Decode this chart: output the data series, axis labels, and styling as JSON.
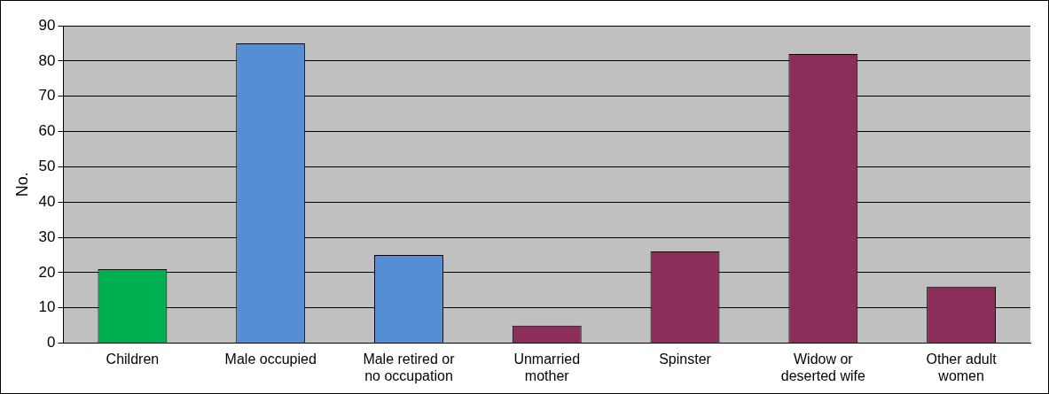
{
  "chart_data": {
    "type": "bar",
    "ylabel": "No.",
    "categories": [
      "Children",
      "Male occupied",
      "Male retired or\nno occupation",
      "Unmarried\nmother",
      "Spinster",
      "Widow or\ndeserted wife",
      "Other adult\nwomen"
    ],
    "values": [
      21,
      85,
      25,
      5,
      26,
      82,
      16
    ],
    "colors": [
      "#00b050",
      "#558ed5",
      "#558ed5",
      "#8b2e5a",
      "#8b2e5a",
      "#8b2e5a",
      "#8b2e5a"
    ],
    "ylim": [
      0,
      90
    ],
    "yticks": [
      0,
      10,
      20,
      30,
      40,
      50,
      60,
      70,
      80,
      90
    ],
    "grid": "y",
    "legend": false
  }
}
